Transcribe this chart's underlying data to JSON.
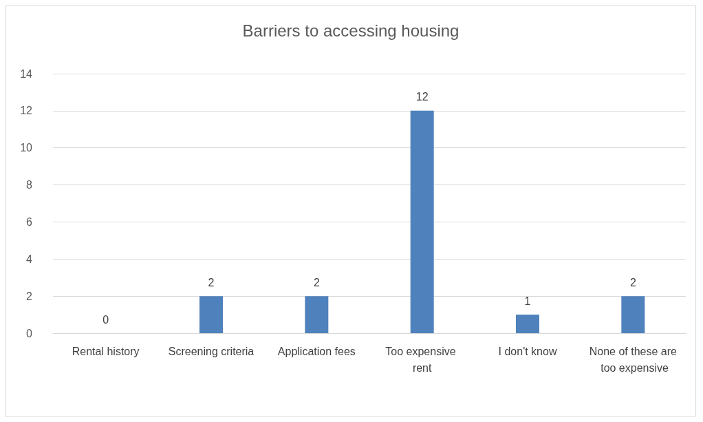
{
  "chart_data": {
    "type": "bar",
    "title": "Barriers to accessing housing",
    "categories": [
      "Rental history",
      "Screening criteria",
      "Application fees",
      "Too expensive rent",
      "I don't know",
      "None of these are too expensive"
    ],
    "values": [
      0,
      2,
      2,
      12,
      1,
      2
    ],
    "color": "#4f81bd",
    "ylim": [
      0,
      14
    ],
    "yticks": [
      0,
      2,
      4,
      6,
      8,
      10,
      12,
      14
    ],
    "grid": "y",
    "data_labels": true
  }
}
